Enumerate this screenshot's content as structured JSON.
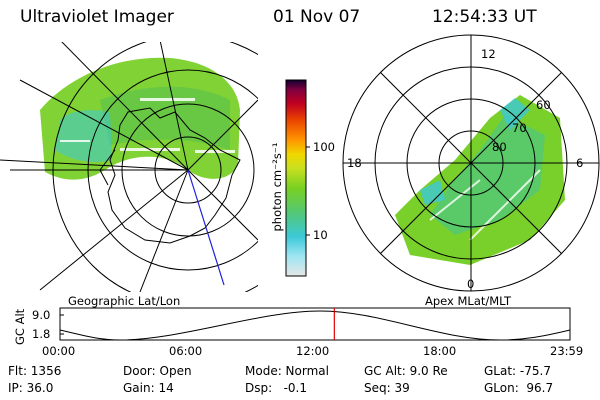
{
  "header": {
    "instrument": "Ultraviolet Imager",
    "date": "01 Nov 07",
    "time": "12:54:33 UT"
  },
  "left_panel": {
    "label": "Geographic Lat/Lon"
  },
  "right_panel": {
    "label": "Apex MLat/MLT",
    "mlt_labels": [
      "12",
      "18",
      "6",
      "0"
    ],
    "mlat_labels": [
      "60",
      "70",
      "80"
    ]
  },
  "colorbar": {
    "unit_label": "photon cm⁻²s⁻¹",
    "ticks": [
      "100",
      "10"
    ],
    "scale": "log",
    "colors": [
      "#e6e6e6",
      "#9fe6f2",
      "#3cc8d8",
      "#52c878",
      "#7ad020",
      "#c8e020",
      "#f0d800",
      "#ff9000",
      "#e84000",
      "#c00020",
      "#800040",
      "#100030"
    ]
  },
  "timeline": {
    "axis_label": "GC Alt",
    "y_ticks": [
      "9.0",
      "1.8"
    ],
    "x_ticks": [
      "00:00",
      "06:00",
      "12:00",
      "18:00",
      "23:59"
    ],
    "current_time_fraction": 0.5379,
    "marker_color": "#e00000"
  },
  "info": {
    "flt": "Flt: 1356",
    "ip": "IP: 36.0",
    "door": "Door: Open",
    "gain": "Gain: 14",
    "mode": "Mode: Normal",
    "dsp": "Dsp:   -0.1",
    "gcalt": "GC Alt: 9.0 Re",
    "seq": "Seq: 39",
    "glat": "GLat: -75.7",
    "glon": "GLon:  96.7"
  }
}
